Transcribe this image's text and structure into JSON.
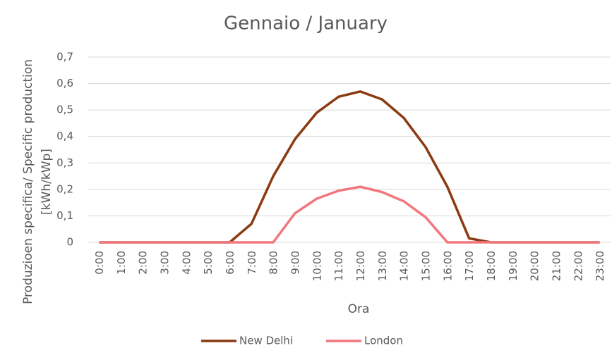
{
  "chart_data": {
    "type": "line",
    "title": "Gennaio / January",
    "ylabel": [
      "Produzioen specifica/ Specific production",
      "[kWh/kWp]"
    ],
    "xlabel": "Ora",
    "categories": [
      "0:00",
      "1:00",
      "2:00",
      "3:00",
      "4:00",
      "5:00",
      "6:00",
      "7:00",
      "8:00",
      "9:00",
      "10:00",
      "11:00",
      "12:00",
      "13:00",
      "14:00",
      "15:00",
      "16:00",
      "17:00",
      "18:00",
      "19:00",
      "20:00",
      "21:00",
      "22:00",
      "23:00"
    ],
    "series": [
      {
        "name": "New Delhi",
        "color": "#8b3a12",
        "values": [
          0,
          0,
          0,
          0,
          0,
          0,
          0,
          0.07,
          0.25,
          0.39,
          0.49,
          0.55,
          0.57,
          0.54,
          0.47,
          0.36,
          0.21,
          0.015,
          0,
          0,
          0,
          0,
          0,
          0
        ]
      },
      {
        "name": "London",
        "color": "#f2777d",
        "values": [
          0,
          0,
          0,
          0,
          0,
          0,
          0,
          0,
          0,
          0.11,
          0.165,
          0.195,
          0.21,
          0.19,
          0.155,
          0.095,
          0,
          0,
          0,
          0,
          0,
          0,
          0,
          0
        ]
      }
    ],
    "ylim": [
      0,
      0.7
    ],
    "yticks": [
      0,
      {
        "value": 0.1,
        "label": "0,1"
      },
      {
        "value": 0.2,
        "label": "0,2"
      },
      {
        "value": 0.3,
        "label": "0,3"
      },
      {
        "value": 0.4,
        "label": "0,4"
      },
      {
        "value": 0.5,
        "label": "0,5"
      },
      {
        "value": 0.6,
        "label": "0,6"
      },
      {
        "value": 0.7,
        "label": "0,7"
      }
    ],
    "grid": true,
    "legend": "bottom"
  }
}
